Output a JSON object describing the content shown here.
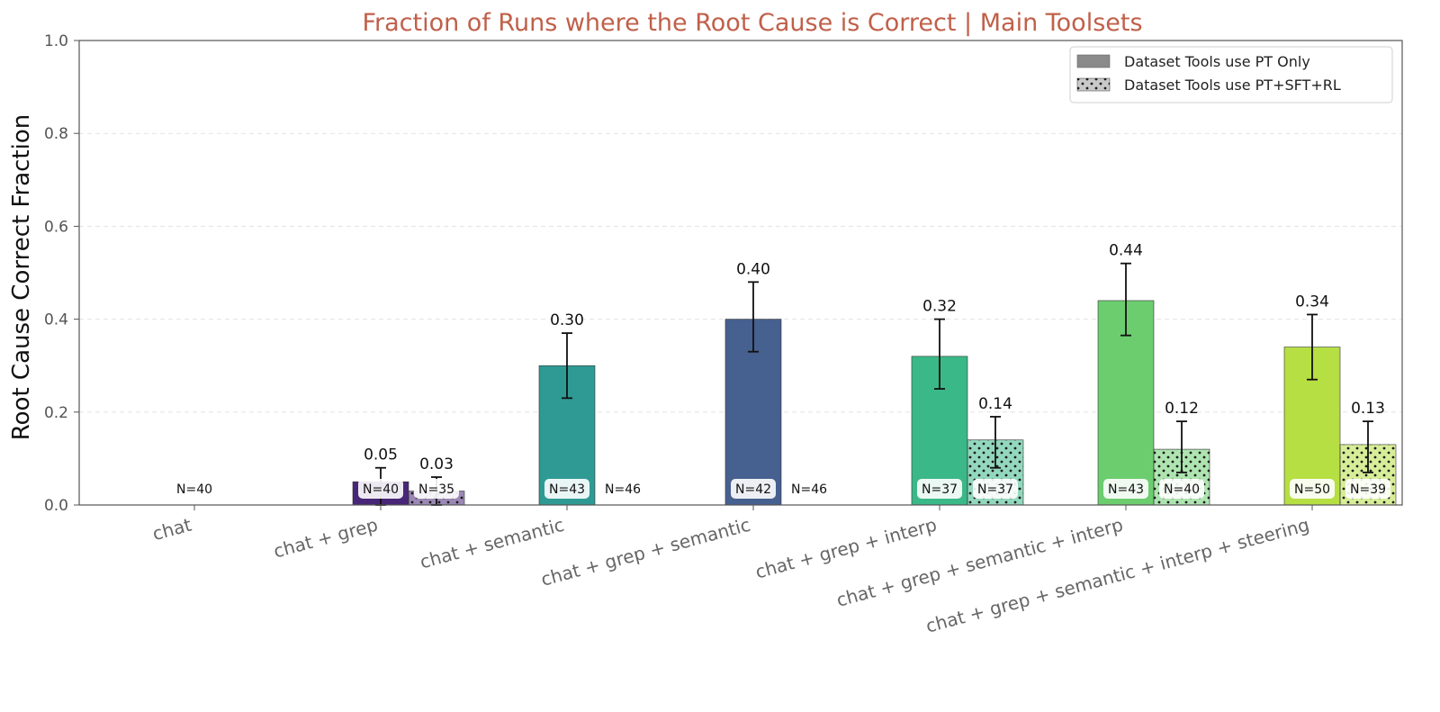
{
  "chart_data": {
    "type": "bar",
    "title": "Fraction of Runs where the Root Cause is Correct | Main Toolsets",
    "ylabel": "Root Cause Correct Fraction",
    "xlabel": "",
    "ylim": [
      0,
      1.0
    ],
    "yticks": [
      "0.0",
      "0.2",
      "0.4",
      "0.6",
      "0.8",
      "1.0"
    ],
    "ytick_values": [
      0,
      0.2,
      0.4,
      0.6,
      0.8,
      1.0
    ],
    "grid": "horizontal dashed",
    "legend_position": "top-right",
    "categories": [
      "chat",
      "chat + grep",
      "chat + semantic",
      "chat + grep + semantic",
      "chat + grep + interp",
      "chat + grep + semantic + interp",
      "chat + grep + semantic + interp + steering"
    ],
    "colors": [
      "#482677",
      "#482677",
      "#2f9a94",
      "#46608f",
      "#3bb888",
      "#6ccd6f",
      "#b6df43"
    ],
    "series": [
      {
        "name": "Dataset Tools use PT Only",
        "pattern": "solid",
        "values": [
          0.0,
          0.05,
          0.3,
          0.4,
          0.32,
          0.44,
          0.34
        ],
        "value_labels": [
          "",
          "0.05",
          "0.30",
          "0.40",
          "0.32",
          "0.44",
          "0.34"
        ],
        "error_low": [
          0.0,
          0.0,
          0.23,
          0.33,
          0.25,
          0.365,
          0.27
        ],
        "error_high": [
          0.0,
          0.08,
          0.37,
          0.48,
          0.4,
          0.52,
          0.41
        ],
        "n_labels": [
          "N=40",
          "N=40",
          "N=43",
          "N=42",
          "N=37",
          "N=43",
          "N=50"
        ]
      },
      {
        "name": "Dataset Tools use PT+SFT+RL",
        "pattern": "dotted",
        "values": [
          null,
          0.03,
          0.0,
          0.0,
          0.14,
          0.12,
          0.13
        ],
        "value_labels": [
          "",
          "0.03",
          "",
          "",
          "0.14",
          "0.12",
          "0.13"
        ],
        "error_low": [
          null,
          0.0,
          0.0,
          0.0,
          0.08,
          0.07,
          0.07
        ],
        "error_high": [
          null,
          0.06,
          0.0,
          0.0,
          0.19,
          0.18,
          0.18
        ],
        "n_labels": [
          "",
          "N=35",
          "N=46",
          "N=46",
          "N=37",
          "N=40",
          "N=39"
        ]
      }
    ]
  }
}
